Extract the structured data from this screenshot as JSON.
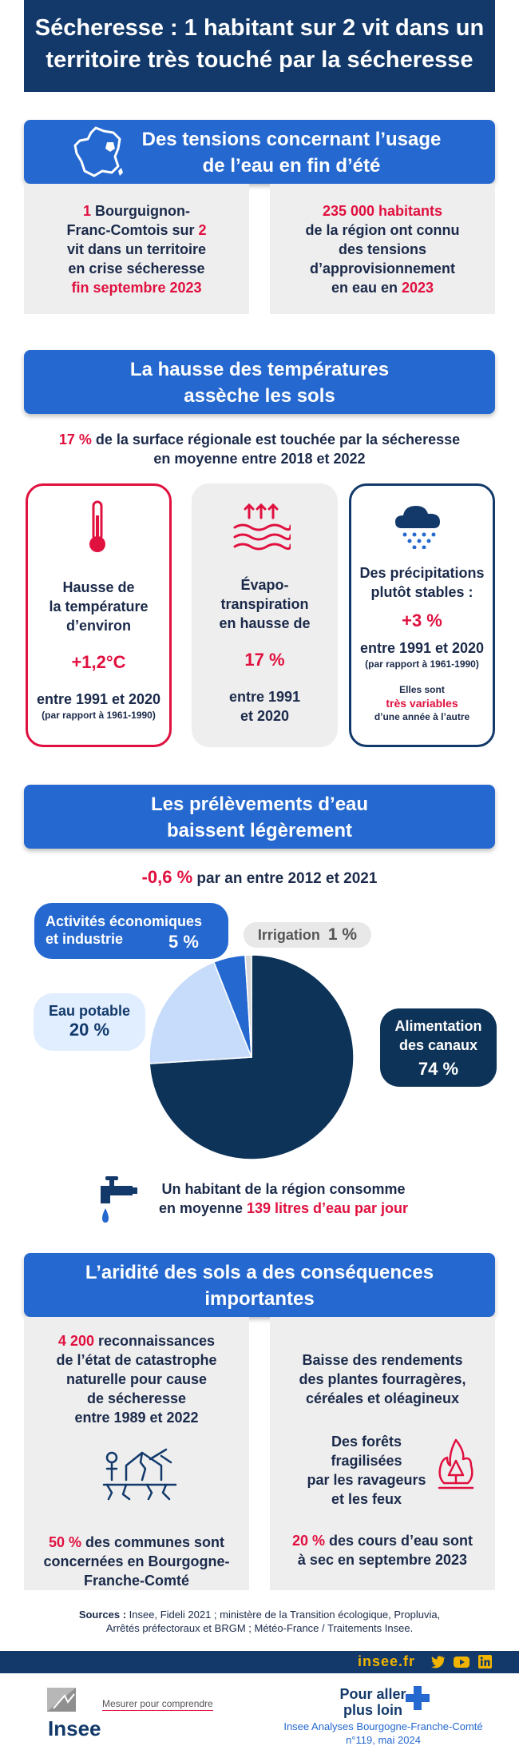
{
  "title_line1": "Sécheresse : 1 habitant sur 2 vit dans un",
  "title_line2": "territoire très touché par la sécheresse",
  "s1": {
    "title1": "Des tensions concernant l’usage",
    "title2": "de l’eau en fin d’été",
    "card_left": {
      "num1": "1",
      "t1": " Bourguignon-",
      "t2": "Franc-Comtois sur ",
      "num2": "2",
      "t3": "vit dans un territoire",
      "t4": "en crise sécheresse",
      "t5": "fin septembre 2023"
    },
    "card_right": {
      "t1": "235 000 habitants",
      "t2": "de la région ont connu",
      "t3": "des tensions",
      "t4": "d’approvisionnement",
      "t5": "en eau en ",
      "year": "2023"
    }
  },
  "s2": {
    "title1": "La hausse des températures",
    "title2": "assèche les sols",
    "intro_pct": "17 %",
    "intro1": " de la surface régionale est touchée par la sécheresse",
    "intro2": "en moyenne entre 2018 et 2022",
    "temp": {
      "l1": "Hausse de",
      "l2": "la température",
      "l3": "d’environ",
      "value": "+1,2°C",
      "l4": "entre 1991 et 2020",
      "l5": "(par rapport à 1961-1990)"
    },
    "evapo": {
      "l1": "Évapo-",
      "l2": "transpiration",
      "l3": "en hausse de",
      "value": "17 %",
      "l4": "entre 1991",
      "l5": "et 2020"
    },
    "precip": {
      "l1": "Des précipitations",
      "l2": "plutôt stables :",
      "value": "+3 %",
      "l3": "entre 1991 et 2020",
      "l4": "(par rapport à 1961-1990)",
      "l5": "Elles sont",
      "l6": "très variables",
      "l7": "d’une année à l’autre"
    }
  },
  "s3": {
    "title1": "Les prélèvements d’eau",
    "title2": "baissent légèrement",
    "trend_value": "-0,6 %",
    "trend_text": " par an entre 2012 et 2021",
    "consumption1": "Un habitant de la région consomme",
    "consumption2": "en moyenne ",
    "consumption_value": "139 litres d’eau par jour"
  },
  "chart_data": {
    "type": "pie",
    "slices": [
      {
        "label1": "Alimentation",
        "label2": "des canaux",
        "value": 74,
        "display": "74 %",
        "color": "#0d3358"
      },
      {
        "label1": "Eau potable",
        "label2": "",
        "value": 20,
        "display": "20 %",
        "color": "#c6dcfa"
      },
      {
        "label1": "Activités économiques",
        "label2": "et industrie",
        "value": 5,
        "display": "5 %",
        "color": "#2468d0"
      },
      {
        "label1": "Irrigation",
        "label2": "",
        "value": 1,
        "display": "1 %",
        "color": "#d9d9d9"
      }
    ]
  },
  "s4": {
    "title1": "L’aridité des sols a des conséquences",
    "title2": "importantes",
    "left": {
      "num": "4 200",
      "t1": " reconnaissances",
      "t2": "de l’état de catastrophe",
      "t3": "naturelle pour cause",
      "t4": "de sécheresse",
      "t5": "entre 1989 et 2022",
      "pct": "50 %",
      "t6": " des communes sont",
      "t7": "concernées en Bourgogne-",
      "t8": "Franche-Comté"
    },
    "right": {
      "t1": "Baisse des rendements",
      "t2": "des plantes fourragères,",
      "t3": "céréales et oléagineux",
      "f1": "Des forêts",
      "f2": "fragilisées",
      "f3": "par les ravageurs",
      "f4": "et les feux",
      "pct": "20 %",
      "t4": " des cours d’eau sont",
      "t5": "à sec en septembre 2023"
    }
  },
  "sources": {
    "label": "Sources :",
    "line1": " Insee, Fideli 2021 ; ministère de la Transition écologique, Propluvia,",
    "line2": "Arrêtés préfectoraux et BRGM ; Météo-France / Traitements Insee."
  },
  "footer": {
    "site": "insee.fr",
    "logo_text": "Insee",
    "tagline": "Mesurer pour comprendre",
    "more1": "Pour aller",
    "more2": "plus loin",
    "pub1": "Insee Analyses Bourgogne-Franche-Comté",
    "pub2": "n°119, mai 2024"
  },
  "colors": {
    "navy": "#12396a",
    "blue": "#2468d0",
    "red": "#e0103f",
    "grey": "#eeeeee",
    "accent": "#f0b400"
  }
}
